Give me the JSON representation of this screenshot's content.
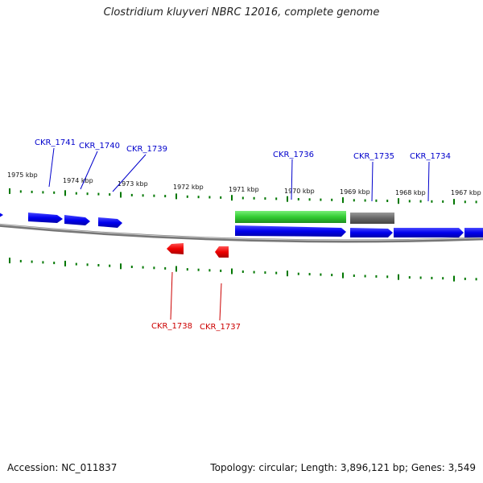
{
  "title": "Clostridium kluyveri NBRC 12016, complete genome",
  "footer": {
    "accession": "Accession: NC_011837",
    "summary": "Topology: circular; Length: 3,896,121 bp; Genes: 3,549"
  },
  "colors": {
    "forward_gene": "#0000ff",
    "reverse_gene": "#ff0000",
    "rna_gene": "#33cc33",
    "pseudo_gene": "#666666",
    "tick": "#007700",
    "backbone": "#888888",
    "label_forward": "#0000cc",
    "label_reverse": "#cc0000"
  },
  "scale": {
    "unit": "kbp",
    "labels": [
      "1975 kbp",
      "1974 kbp",
      "1973 kbp",
      "1972 kbp",
      "1971 kbp",
      "1970 kbp",
      "1969 kbp",
      "1968 kbp",
      "1967 kbp"
    ]
  },
  "genes": [
    {
      "id": "CKR_1741",
      "strand": "+",
      "kind": "cds",
      "labeled": true
    },
    {
      "id": "CKR_1740",
      "strand": "+",
      "kind": "cds",
      "labeled": true
    },
    {
      "id": "CKR_1739",
      "strand": "+",
      "kind": "cds",
      "labeled": true
    },
    {
      "id": "CKR_1738",
      "strand": "-",
      "kind": "cds",
      "labeled": true
    },
    {
      "id": "CKR_1737",
      "strand": "-",
      "kind": "cds",
      "labeled": true
    },
    {
      "id": "CKR_1736",
      "strand": "+",
      "kind": "cds",
      "labeled": true
    },
    {
      "id": "CKR_1735",
      "strand": "+",
      "kind": "cds",
      "labeled": true
    },
    {
      "id": "CKR_1734",
      "strand": "+",
      "kind": "cds",
      "labeled": true
    }
  ]
}
